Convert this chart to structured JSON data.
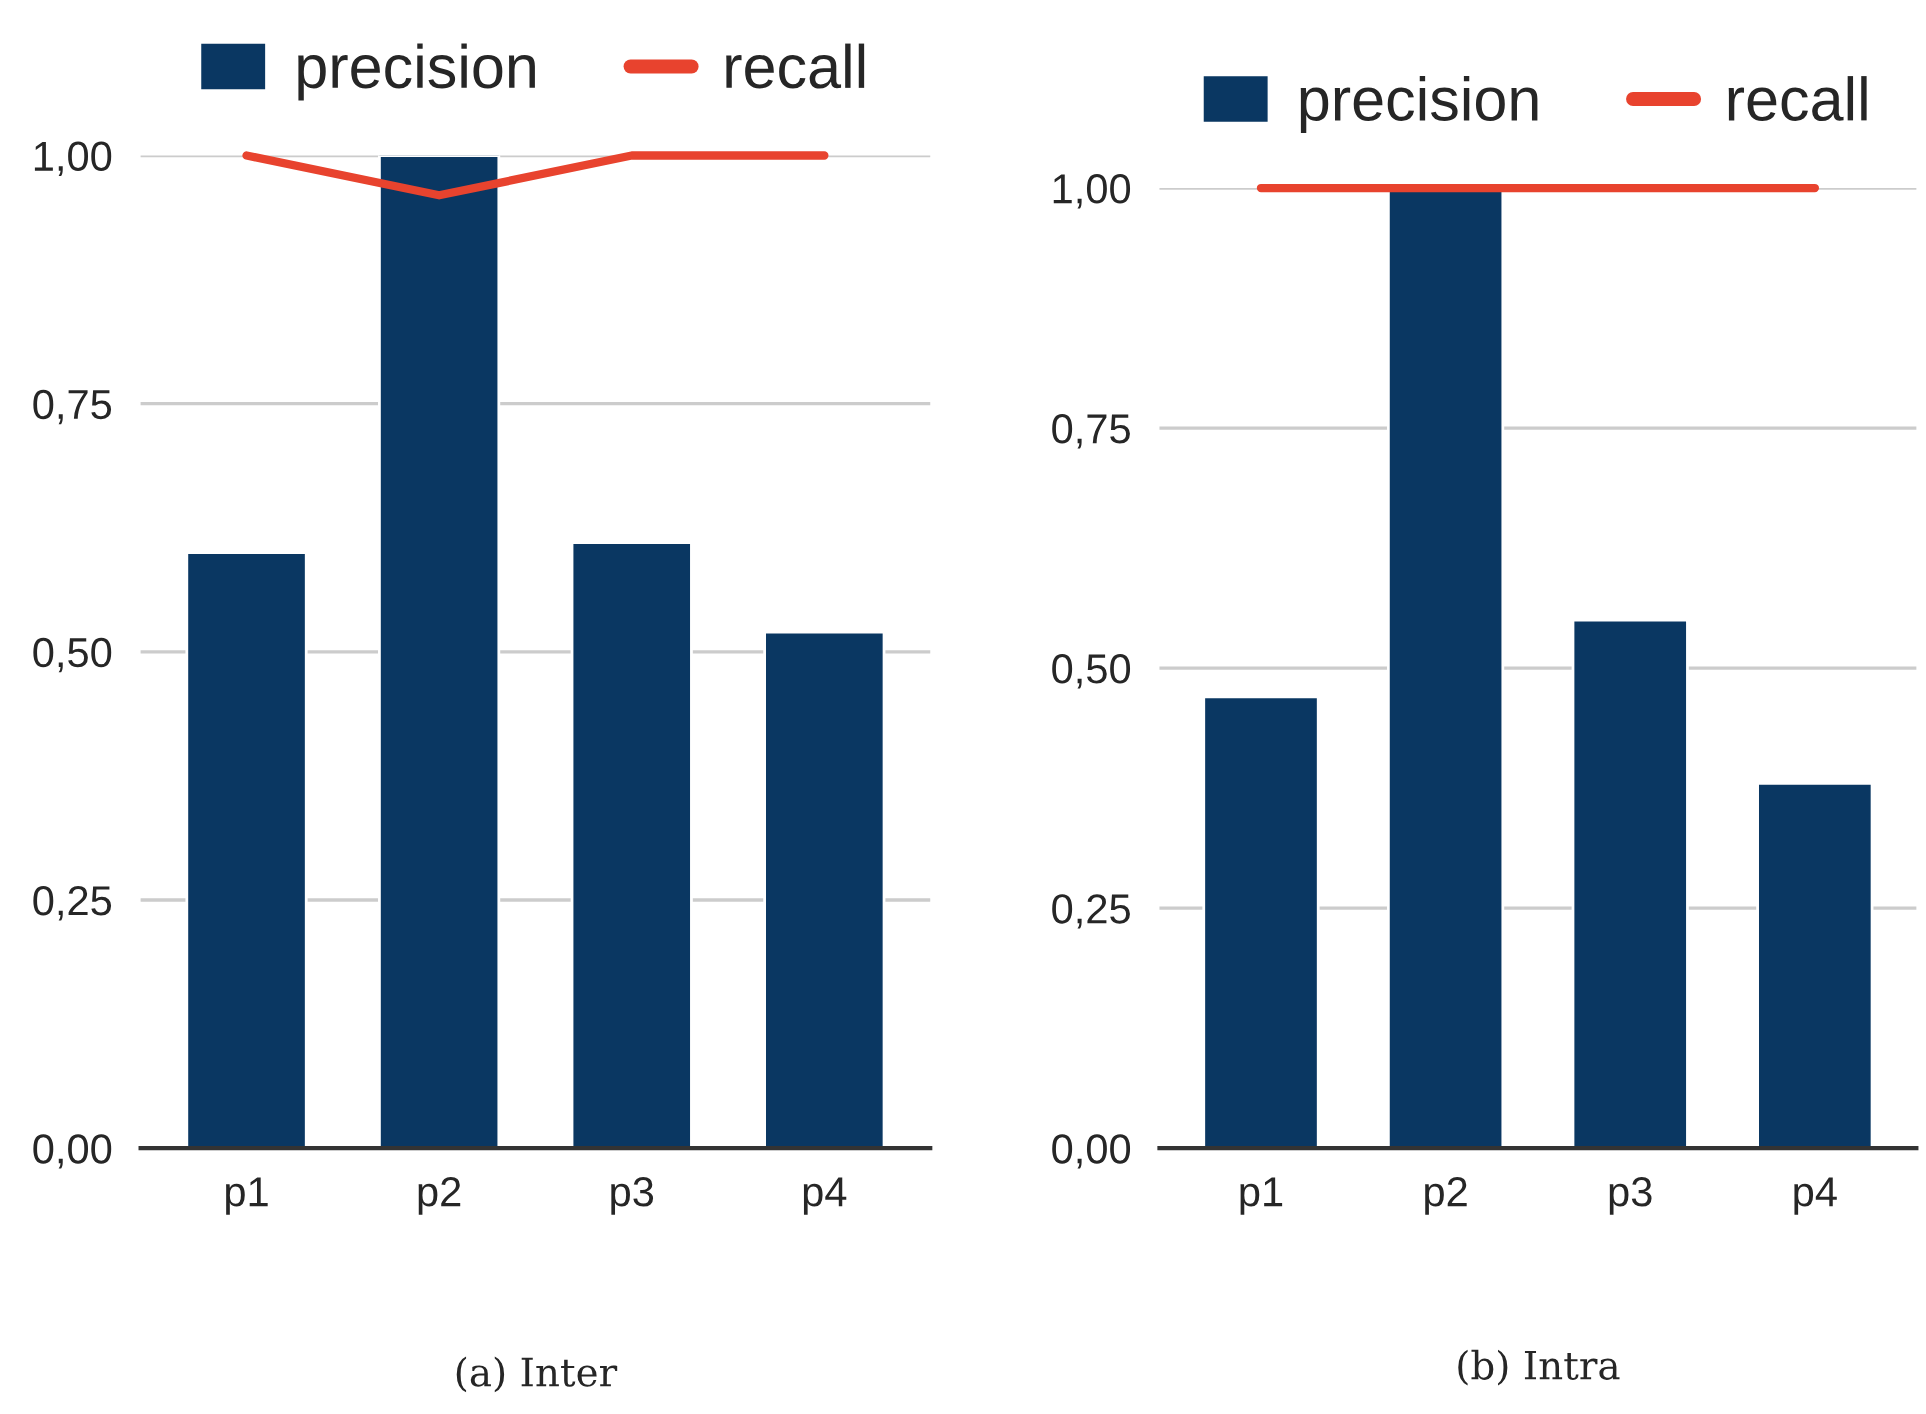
{
  "chart_data": [
    {
      "type": "bar",
      "categories": [
        "p1",
        "p2",
        "p3",
        "p4"
      ],
      "series": [
        {
          "name": "precision",
          "color": "#0a3762",
          "values": [
            0.6,
            1.0,
            0.61,
            0.52
          ]
        },
        {
          "name": "recall",
          "type": "line",
          "color": "#e8432e",
          "values": [
            1.0,
            0.96,
            1.0,
            1.0
          ]
        }
      ],
      "ylim": [
        0,
        1
      ],
      "yticks": [
        {
          "value": 0,
          "label": "0,00"
        },
        {
          "value": 0.25,
          "label": "0,25"
        },
        {
          "value": 0.5,
          "label": "0,50"
        },
        {
          "value": 0.75,
          "label": "0,75"
        },
        {
          "value": 1,
          "label": "1,00"
        }
      ],
      "grid": "y",
      "legend": "top",
      "marker": "none",
      "line_style": "solid",
      "annotations": [
        "(a) Inter"
      ]
    },
    {
      "type": "bar",
      "categories": [
        "p1",
        "p2",
        "p3",
        "p4"
      ],
      "series": [
        {
          "name": "precision",
          "color": "#0a3762",
          "values": [
            0.47,
            1.0,
            0.55,
            0.38
          ]
        },
        {
          "name": "recall",
          "type": "line",
          "color": "#e8432e",
          "values": [
            1.0,
            1.0,
            1.0,
            1.0
          ]
        }
      ],
      "ylim": [
        0,
        1
      ],
      "yticks": [
        {
          "value": 0,
          "label": "0,00"
        },
        {
          "value": 0.25,
          "label": "0,25"
        },
        {
          "value": 0.5,
          "label": "0,50"
        },
        {
          "value": 0.75,
          "label": "0,75"
        },
        {
          "value": 1,
          "label": "1,00"
        }
      ],
      "grid": "y",
      "legend": "top",
      "marker": "none",
      "line_style": "solid",
      "annotations": [
        "(b) Intra"
      ]
    }
  ]
}
